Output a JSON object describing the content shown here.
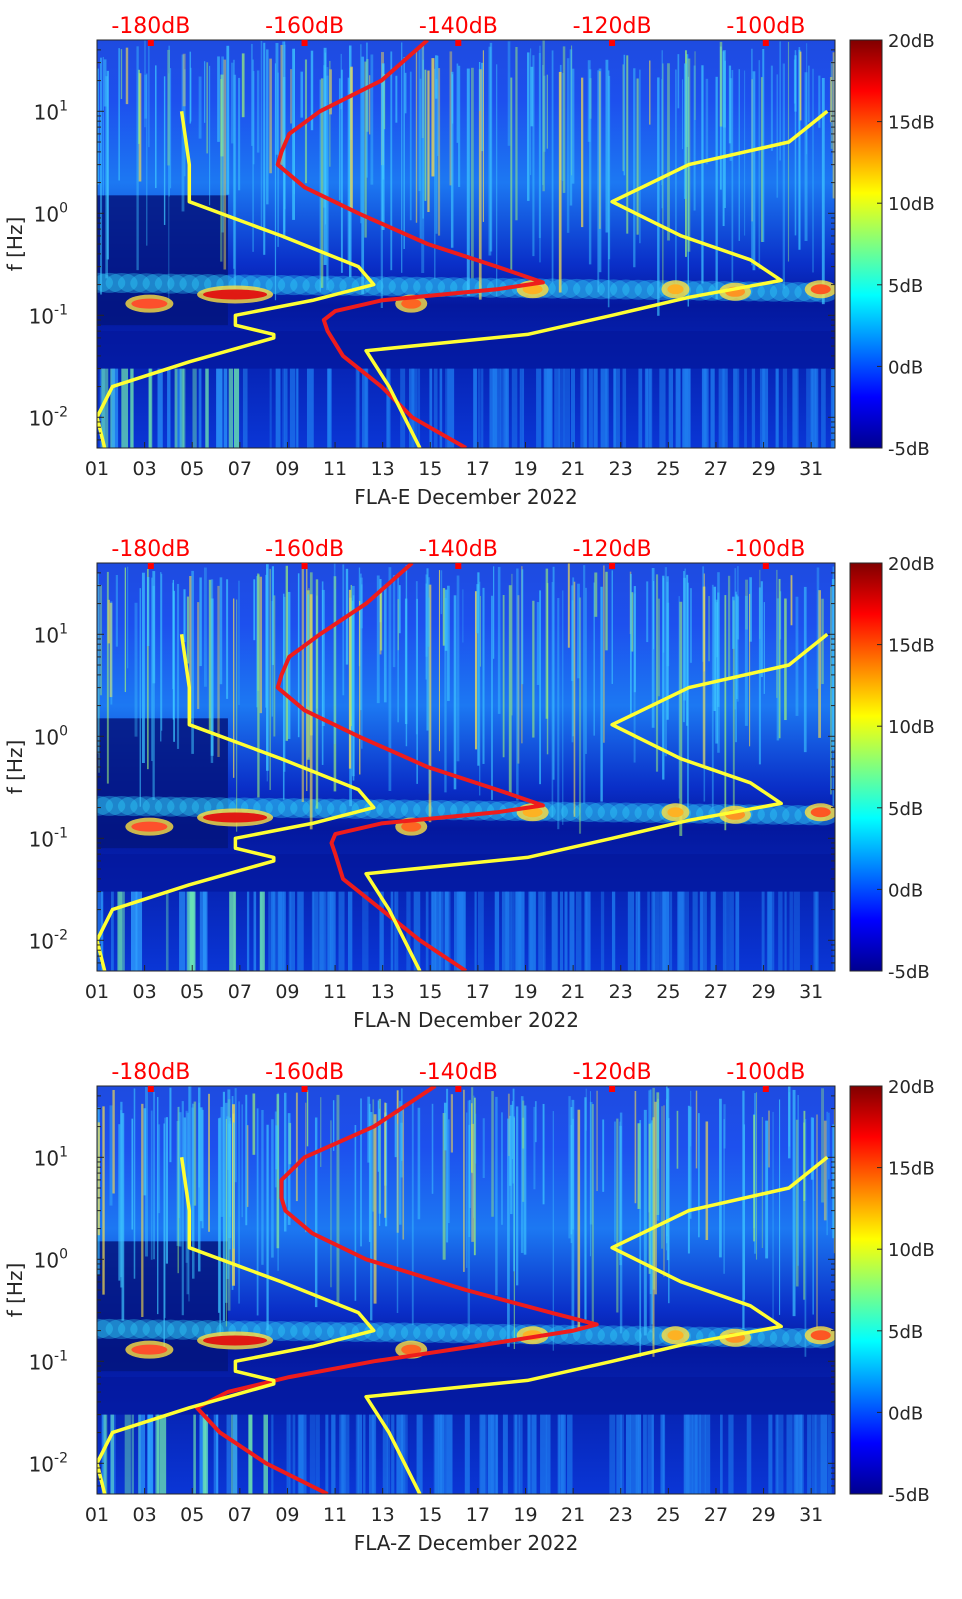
{
  "chart_data": [
    {
      "type": "heatmap",
      "panel": "FLA-E",
      "xlabel": "FLA-E December 2022",
      "ylabel": "f [Hz]",
      "x_ticks": [
        "01",
        "03",
        "05",
        "07",
        "09",
        "11",
        "13",
        "15",
        "17",
        "19",
        "21",
        "23",
        "25",
        "27",
        "29",
        "31"
      ],
      "x_range_days": [
        1,
        32
      ],
      "y_scale": "log",
      "y_range_hz": [
        0.005,
        50
      ],
      "y_tick_labels": [
        {
          "mantissa": "10",
          "exponent": "-2",
          "value": 0.01
        },
        {
          "mantissa": "10",
          "exponent": "-1",
          "value": 0.1
        },
        {
          "mantissa": "10",
          "exponent": "0",
          "value": 1
        },
        {
          "mantissa": "10",
          "exponent": "1",
          "value": 10
        }
      ],
      "top_axis": {
        "labels": [
          "-180dB",
          "-160dB",
          "-140dB",
          "-120dB",
          "-100dB"
        ],
        "range_db": [
          -187,
          -91
        ],
        "color": "#ff0000"
      },
      "colorbar": {
        "labels": [
          "20dB",
          "15dB",
          "10dB",
          "5dB",
          "0dB",
          "-5dB"
        ],
        "range_db": [
          -5,
          20
        ]
      },
      "curves": {
        "red_psd_median_db": {
          "color": "#ee1c1c",
          "points": [
            [
              0.005,
              -139
            ],
            [
              0.01,
              -146
            ],
            [
              0.02,
              -150
            ],
            [
              0.04,
              -155
            ],
            [
              0.07,
              -157
            ],
            [
              0.09,
              -157.5
            ],
            [
              0.11,
              -156
            ],
            [
              0.14,
              -150
            ],
            [
              0.18,
              -135
            ],
            [
              0.21,
              -129
            ],
            [
              0.3,
              -135
            ],
            [
              0.5,
              -144
            ],
            [
              1,
              -153
            ],
            [
              1.8,
              -160
            ],
            [
              3,
              -163.5
            ],
            [
              4,
              -163
            ],
            [
              6,
              -162
            ],
            [
              10,
              -158
            ],
            [
              20,
              -150
            ],
            [
              50,
              -144
            ]
          ]
        },
        "yellow_low_noise_db": {
          "color": "#ffff33",
          "points": [
            [
              0.005,
              -186
            ],
            [
              0.01,
              -187
            ],
            [
              0.02,
              -185
            ],
            [
              0.035,
              -175
            ],
            [
              0.06,
              -164
            ],
            [
              0.065,
              -164
            ],
            [
              0.08,
              -169
            ],
            [
              0.1,
              -169
            ],
            [
              0.14,
              -159
            ],
            [
              0.2,
              -151
            ],
            [
              0.3,
              -153
            ],
            [
              0.6,
              -163
            ],
            [
              1.3,
              -175
            ],
            [
              3,
              -175
            ],
            [
              10,
              -176
            ]
          ]
        },
        "yellow_high_noise_db": {
          "color": "#ffff33",
          "points": [
            [
              0.005,
              -145
            ],
            [
              0.01,
              -147
            ],
            [
              0.02,
              -149
            ],
            [
              0.045,
              -152
            ],
            [
              0.065,
              -131
            ],
            [
              0.1,
              -120
            ],
            [
              0.15,
              -110
            ],
            [
              0.22,
              -98
            ],
            [
              0.35,
              -102
            ],
            [
              0.6,
              -111
            ],
            [
              1.3,
              -120
            ],
            [
              3,
              -110
            ],
            [
              5,
              -97
            ],
            [
              10,
              -92
            ]
          ]
        }
      }
    },
    {
      "type": "heatmap",
      "panel": "FLA-N",
      "xlabel": "FLA-N December 2022",
      "ylabel": "f [Hz]",
      "x_ticks": [
        "01",
        "03",
        "05",
        "07",
        "09",
        "11",
        "13",
        "15",
        "17",
        "19",
        "21",
        "23",
        "25",
        "27",
        "29",
        "31"
      ],
      "x_range_days": [
        1,
        32
      ],
      "y_scale": "log",
      "y_range_hz": [
        0.005,
        50
      ],
      "y_tick_labels": [
        {
          "mantissa": "10",
          "exponent": "-2",
          "value": 0.01
        },
        {
          "mantissa": "10",
          "exponent": "-1",
          "value": 0.1
        },
        {
          "mantissa": "10",
          "exponent": "0",
          "value": 1
        },
        {
          "mantissa": "10",
          "exponent": "1",
          "value": 10
        }
      ],
      "top_axis": {
        "labels": [
          "-180dB",
          "-160dB",
          "-140dB",
          "-120dB",
          "-100dB"
        ],
        "range_db": [
          -187,
          -91
        ],
        "color": "#ff0000"
      },
      "colorbar": {
        "labels": [
          "20dB",
          "15dB",
          "10dB",
          "5dB",
          "0dB",
          "-5dB"
        ],
        "range_db": [
          -5,
          20
        ]
      },
      "curves": {
        "red_psd_median_db": {
          "color": "#ee1c1c",
          "points": [
            [
              0.005,
              -139
            ],
            [
              0.01,
              -145
            ],
            [
              0.02,
              -150
            ],
            [
              0.04,
              -155
            ],
            [
              0.07,
              -156
            ],
            [
              0.09,
              -156.5
            ],
            [
              0.11,
              -156
            ],
            [
              0.14,
              -150
            ],
            [
              0.18,
              -135
            ],
            [
              0.21,
              -129
            ],
            [
              0.3,
              -135
            ],
            [
              0.5,
              -144
            ],
            [
              1,
              -153
            ],
            [
              1.8,
              -160
            ],
            [
              3,
              -163.5
            ],
            [
              4,
              -163
            ],
            [
              6,
              -162
            ],
            [
              10,
              -158
            ],
            [
              20,
              -152
            ],
            [
              50,
              -146
            ]
          ]
        },
        "yellow_low_noise_db": {
          "color": "#ffff33",
          "points": [
            [
              0.005,
              -186
            ],
            [
              0.01,
              -187
            ],
            [
              0.02,
              -185
            ],
            [
              0.035,
              -175
            ],
            [
              0.06,
              -164
            ],
            [
              0.065,
              -164
            ],
            [
              0.08,
              -169
            ],
            [
              0.1,
              -169
            ],
            [
              0.14,
              -159
            ],
            [
              0.2,
              -151
            ],
            [
              0.3,
              -153
            ],
            [
              0.6,
              -163
            ],
            [
              1.3,
              -175
            ],
            [
              3,
              -175
            ],
            [
              10,
              -176
            ]
          ]
        },
        "yellow_high_noise_db": {
          "color": "#ffff33",
          "points": [
            [
              0.005,
              -145
            ],
            [
              0.01,
              -147
            ],
            [
              0.02,
              -149
            ],
            [
              0.045,
              -152
            ],
            [
              0.065,
              -131
            ],
            [
              0.1,
              -120
            ],
            [
              0.15,
              -110
            ],
            [
              0.22,
              -98
            ],
            [
              0.35,
              -102
            ],
            [
              0.6,
              -111
            ],
            [
              1.3,
              -120
            ],
            [
              3,
              -110
            ],
            [
              5,
              -97
            ],
            [
              10,
              -92
            ]
          ]
        }
      }
    },
    {
      "type": "heatmap",
      "panel": "FLA-Z",
      "xlabel": "FLA-Z December 2022",
      "ylabel": "f [Hz]",
      "x_ticks": [
        "01",
        "03",
        "05",
        "07",
        "09",
        "11",
        "13",
        "15",
        "17",
        "19",
        "21",
        "23",
        "25",
        "27",
        "29",
        "31"
      ],
      "x_range_days": [
        1,
        32
      ],
      "y_scale": "log",
      "y_range_hz": [
        0.005,
        50
      ],
      "y_tick_labels": [
        {
          "mantissa": "10",
          "exponent": "-2",
          "value": 0.01
        },
        {
          "mantissa": "10",
          "exponent": "-1",
          "value": 0.1
        },
        {
          "mantissa": "10",
          "exponent": "0",
          "value": 1
        },
        {
          "mantissa": "10",
          "exponent": "1",
          "value": 10
        }
      ],
      "top_axis": {
        "labels": [
          "-180dB",
          "-160dB",
          "-140dB",
          "-120dB",
          "-100dB"
        ],
        "range_db": [
          -187,
          -91
        ],
        "color": "#ff0000"
      },
      "colorbar": {
        "labels": [
          "20dB",
          "15dB",
          "10dB",
          "5dB",
          "0dB",
          "-5dB"
        ],
        "range_db": [
          -5,
          20
        ]
      },
      "curves": {
        "red_psd_median_db": {
          "color": "#ee1c1c",
          "points": [
            [
              0.005,
              -157
            ],
            [
              0.01,
              -165
            ],
            [
              0.02,
              -171
            ],
            [
              0.035,
              -174
            ],
            [
              0.05,
              -170
            ],
            [
              0.07,
              -162
            ],
            [
              0.1,
              -151
            ],
            [
              0.14,
              -138
            ],
            [
              0.2,
              -125
            ],
            [
              0.23,
              -122
            ],
            [
              0.3,
              -128
            ],
            [
              0.5,
              -139
            ],
            [
              1,
              -152
            ],
            [
              1.8,
              -159
            ],
            [
              3,
              -162.5
            ],
            [
              4,
              -163
            ],
            [
              6,
              -163
            ],
            [
              10,
              -160
            ],
            [
              20,
              -151
            ],
            [
              50,
              -143
            ]
          ]
        },
        "yellow_low_noise_db": {
          "color": "#ffff33",
          "points": [
            [
              0.005,
              -186
            ],
            [
              0.01,
              -187
            ],
            [
              0.02,
              -185
            ],
            [
              0.035,
              -175
            ],
            [
              0.06,
              -164
            ],
            [
              0.065,
              -164
            ],
            [
              0.08,
              -169
            ],
            [
              0.1,
              -169
            ],
            [
              0.14,
              -159
            ],
            [
              0.2,
              -151
            ],
            [
              0.3,
              -153
            ],
            [
              0.6,
              -163
            ],
            [
              1.3,
              -175
            ],
            [
              3,
              -175
            ],
            [
              10,
              -176
            ]
          ]
        },
        "yellow_high_noise_db": {
          "color": "#ffff33",
          "points": [
            [
              0.005,
              -145
            ],
            [
              0.01,
              -147
            ],
            [
              0.02,
              -149
            ],
            [
              0.045,
              -152
            ],
            [
              0.065,
              -131
            ],
            [
              0.1,
              -120
            ],
            [
              0.15,
              -110
            ],
            [
              0.22,
              -98
            ],
            [
              0.35,
              -102
            ],
            [
              0.6,
              -111
            ],
            [
              1.3,
              -120
            ],
            [
              3,
              -110
            ],
            [
              5,
              -97
            ],
            [
              10,
              -92
            ]
          ]
        }
      }
    }
  ]
}
